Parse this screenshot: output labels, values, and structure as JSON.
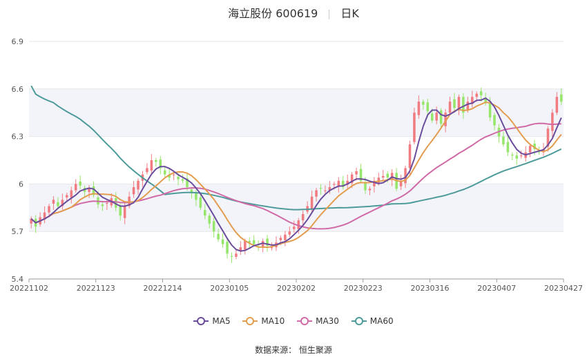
{
  "title": {
    "name": "海立股份 600619",
    "period": "日K"
  },
  "source": "数据来源： 恒生聚源",
  "chart_data": {
    "type": "candlestick",
    "y_ticks": [
      5.4,
      5.7,
      6,
      6.3,
      6.6,
      6.9
    ],
    "ylim": [
      5.4,
      6.9
    ],
    "x_tick_labels": [
      "20221102",
      "20221123",
      "20221214",
      "20230105",
      "20230202",
      "20230223",
      "20230316",
      "20230407",
      "20230427"
    ],
    "colors": {
      "up": "#f07c82",
      "down": "#95e66a",
      "ma5": "#6a4c9c",
      "ma10": "#e39d4f",
      "ma30": "#d06aa6",
      "ma60": "#4d9a9a",
      "band": "#f3f4fa",
      "grid": "#e6e6e6"
    },
    "legend": [
      {
        "name": "MA5",
        "color": "#6a4c9c"
      },
      {
        "name": "MA10",
        "color": "#e39d4f"
      },
      {
        "name": "MA30",
        "color": "#d06aa6"
      },
      {
        "name": "MA60",
        "color": "#4d9a9a"
      }
    ],
    "closes": [
      5.78,
      5.73,
      5.79,
      5.82,
      5.86,
      5.9,
      5.86,
      5.9,
      5.93,
      5.96,
      6.0,
      5.99,
      5.95,
      5.97,
      5.93,
      5.87,
      5.86,
      5.88,
      5.91,
      5.85,
      5.8,
      5.86,
      5.92,
      5.98,
      6.02,
      6.06,
      6.1,
      6.15,
      6.14,
      6.1,
      6.06,
      6.04,
      6.06,
      6.03,
      6.02,
      5.98,
      5.94,
      5.9,
      5.85,
      5.8,
      5.75,
      5.7,
      5.65,
      5.62,
      5.56,
      5.54,
      5.56,
      5.6,
      5.64,
      5.63,
      5.62,
      5.6,
      5.64,
      5.61,
      5.6,
      5.63,
      5.66,
      5.68,
      5.7,
      5.73,
      5.77,
      5.81,
      5.86,
      5.92,
      5.96,
      5.97,
      5.96,
      5.98,
      6.0,
      6.02,
      5.98,
      6.02,
      6.06,
      6.08,
      6.02,
      5.96,
      5.97,
      6.02,
      6.04,
      6.05,
      6.04,
      6.07,
      5.97,
      6.02,
      6.1,
      6.25,
      6.45,
      6.52,
      6.5,
      6.46,
      6.4,
      6.45,
      6.38,
      6.45,
      6.52,
      6.48,
      6.55,
      6.45,
      6.52,
      6.55,
      6.57,
      6.56,
      6.51,
      6.42,
      6.37,
      6.3,
      6.25,
      6.2,
      6.18,
      6.16,
      6.18,
      6.2,
      6.24,
      6.22,
      6.2,
      6.22,
      6.35,
      6.45,
      6.55,
      6.52
    ]
  }
}
